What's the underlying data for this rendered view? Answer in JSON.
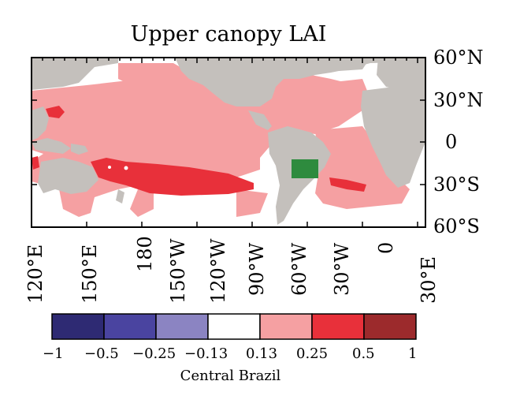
{
  "title": "Upper canopy LAI",
  "caption": "Central Brazil",
  "lat_labels": [
    "60°N",
    "30°N",
    "0",
    "30°S",
    "60°S"
  ],
  "lon_labels": [
    "120°E",
    "150°E",
    "180",
    "150°W",
    "120°W",
    "90°W",
    "60°W",
    "30°W",
    "0",
    "30°E"
  ],
  "colorbar": {
    "ticks": [
      "−1",
      "−0.5",
      "−0.25",
      "−0.13",
      "0.13",
      "0.25",
      "0.5",
      "1"
    ],
    "colors": [
      "#2e2a73",
      "#4a44a0",
      "#8b84c2",
      "#ffffff",
      "#f5a0a2",
      "#e8303a",
      "#9c2a2c"
    ]
  },
  "colors": {
    "land": "#c4c0bc",
    "light_red": "#f5a0a2",
    "red": "#e8303a",
    "forcing_box": "#2e8b3e"
  },
  "forcing_region": "Central Brazil"
}
